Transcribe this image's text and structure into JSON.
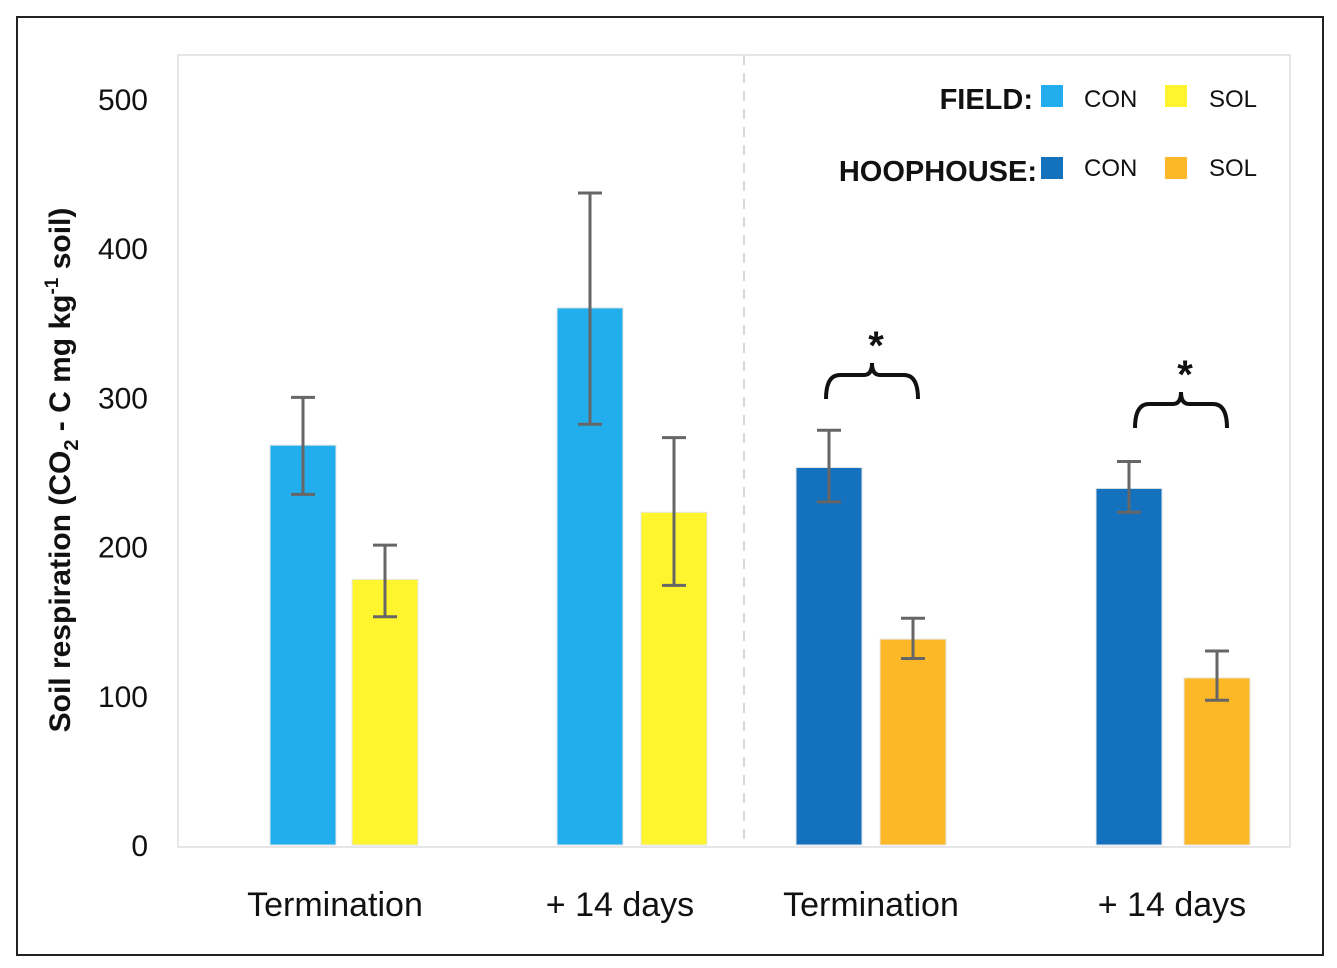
{
  "chart_data": {
    "type": "bar",
    "ylabel_main": "Soil respiration (CO",
    "ylabel_sub2": "2",
    "ylabel_mid": " - C mg kg",
    "ylabel_sup": "-1",
    "ylabel_end": " soil)",
    "ylim": [
      0,
      500
    ],
    "yticks": [
      "0",
      "100",
      "200",
      "300",
      "400",
      "500"
    ],
    "grid": false,
    "legend_position": "top-right",
    "categories": [
      "Termination",
      "+ 14 days",
      "Termination",
      "+ 14 days"
    ],
    "groups": [
      {
        "name": "FIELD:",
        "series": [
          {
            "name": "CON",
            "color": "#22AEEC",
            "values": [
              268,
              360
            ],
            "errors": [
              [
                235,
                300
              ],
              [
                282,
                437
              ]
            ]
          },
          {
            "name": "SOL",
            "color": "#FFF52E",
            "values": [
              178,
              223
            ],
            "errors": [
              [
                153,
                201
              ],
              [
                174,
                273
              ]
            ]
          }
        ]
      },
      {
        "name": "HOOPHOUSE:",
        "series": [
          {
            "name": "CON",
            "color": "#1371BD",
            "values": [
              253,
              239
            ],
            "errors": [
              [
                230,
                278
              ],
              [
                223,
                257
              ]
            ]
          },
          {
            "name": "SOL",
            "color": "#FCB827",
            "values": [
              138,
              112
            ],
            "errors": [
              [
                125,
                152
              ],
              [
                97,
                130
              ]
            ]
          }
        ]
      }
    ],
    "annotations": [
      "*",
      "*"
    ]
  }
}
